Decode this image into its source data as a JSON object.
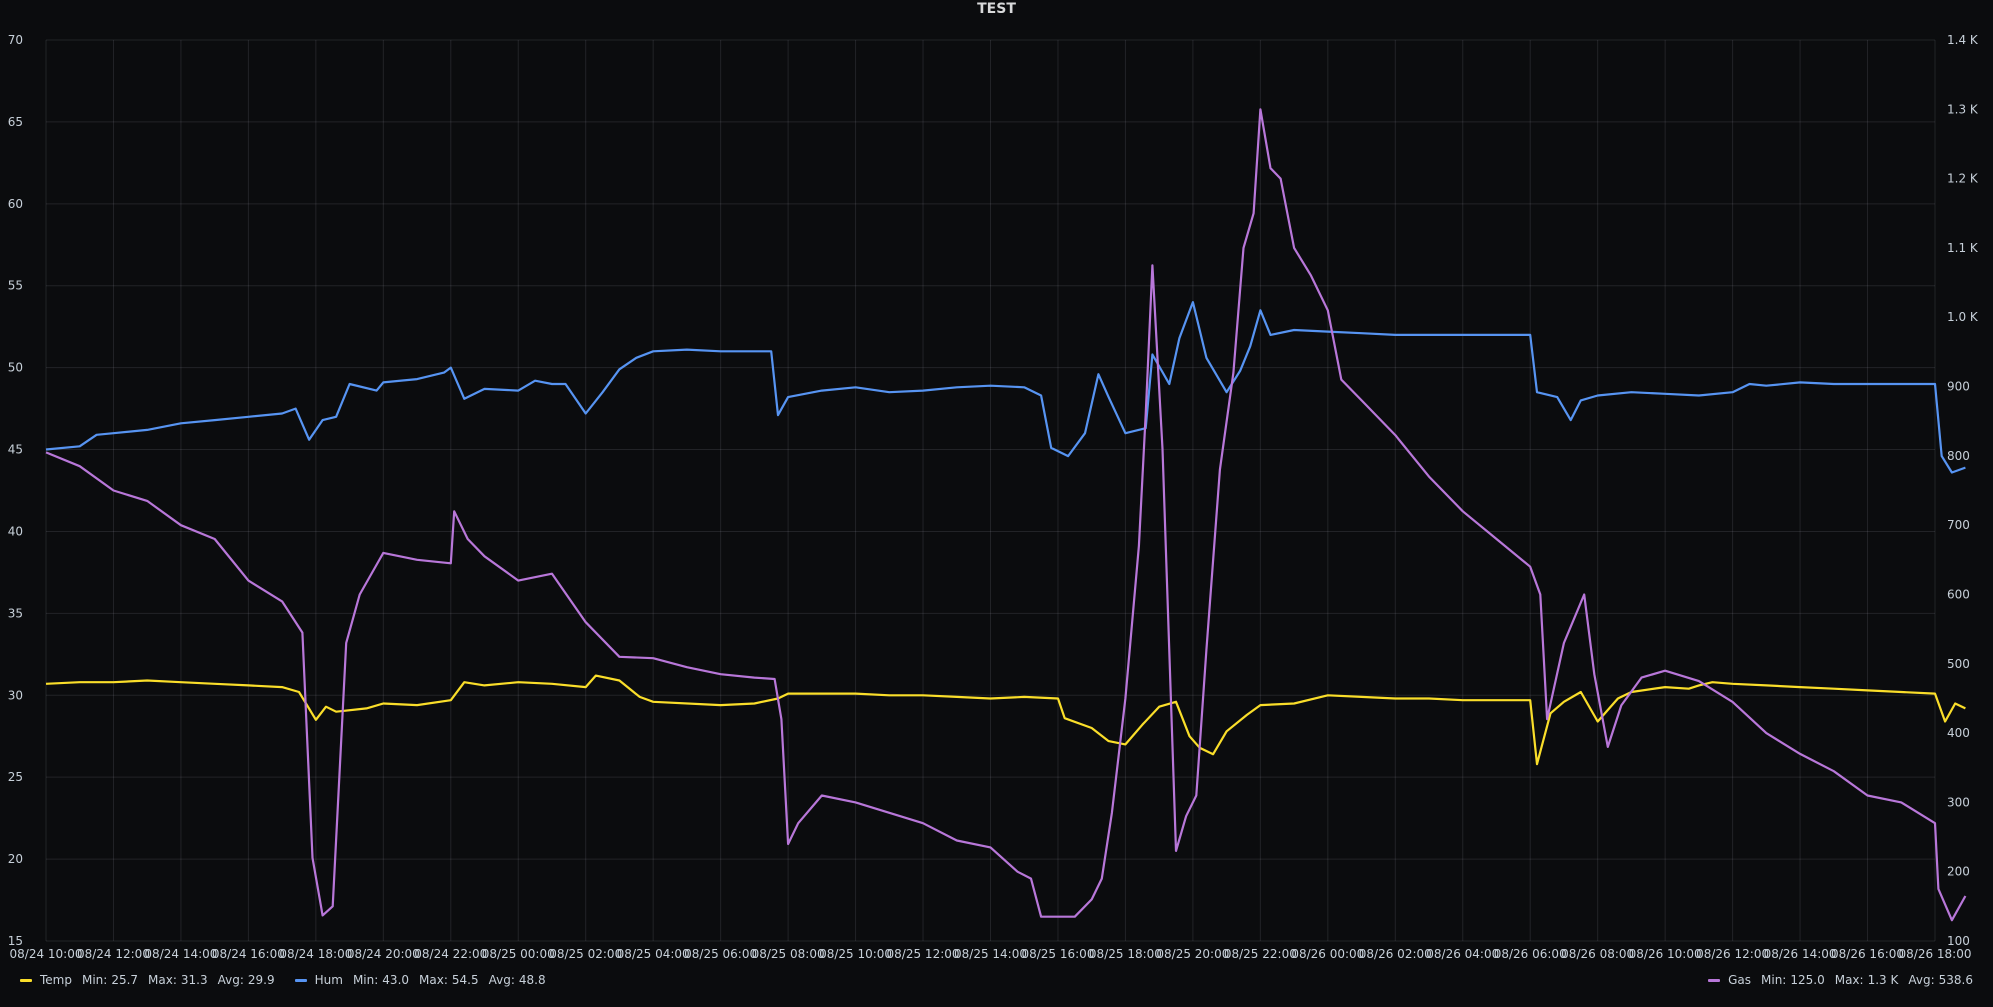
{
  "chart_data": {
    "type": "line",
    "title": "TEST",
    "left_axis": {
      "ylim": [
        15,
        70
      ],
      "ticks": [
        "70",
        "65",
        "60",
        "55",
        "50",
        "45",
        "40",
        "35",
        "30",
        "25",
        "20",
        "15"
      ]
    },
    "right_axis": {
      "ylim": [
        100,
        1400
      ],
      "ticks": [
        "1.4 K",
        "1.3 K",
        "1.2 K",
        "1.1 K",
        "1.0 K",
        "900",
        "800",
        "700",
        "600",
        "500",
        "400",
        "300",
        "200",
        "100"
      ]
    },
    "x_ticks": [
      "08/24 10:00",
      "08/24 12:00",
      "08/24 14:00",
      "08/24 16:00",
      "08/24 18:00",
      "08/24 20:00",
      "08/24 22:00",
      "08/25 00:00",
      "08/25 02:00",
      "08/25 04:00",
      "08/25 06:00",
      "08/25 08:00",
      "08/25 10:00",
      "08/25 12:00",
      "08/25 14:00",
      "08/25 16:00",
      "08/25 18:00",
      "08/25 20:00",
      "08/25 22:00",
      "08/26 00:00",
      "08/26 02:00",
      "08/26 04:00",
      "08/26 06:00",
      "08/26 08:00",
      "08/26 10:00",
      "08/26 12:00",
      "08/26 14:00",
      "08/26 16:00",
      "08/26 18:00"
    ],
    "x_unit": "hours since 08/24 10:00",
    "grid": true,
    "series": [
      {
        "name": "Temp",
        "axis": "left",
        "color": "#fade2a",
        "points": [
          [
            0,
            30.7
          ],
          [
            1,
            30.8
          ],
          [
            2,
            30.8
          ],
          [
            3,
            30.9
          ],
          [
            4,
            30.8
          ],
          [
            5,
            30.7
          ],
          [
            6,
            30.6
          ],
          [
            7,
            30.5
          ],
          [
            7.5,
            30.2
          ],
          [
            8,
            28.5
          ],
          [
            8.3,
            29.3
          ],
          [
            8.6,
            29.0
          ],
          [
            9.5,
            29.2
          ],
          [
            10,
            29.5
          ],
          [
            11,
            29.4
          ],
          [
            12,
            29.7
          ],
          [
            12.4,
            30.8
          ],
          [
            13,
            30.6
          ],
          [
            14,
            30.8
          ],
          [
            15,
            30.7
          ],
          [
            16,
            30.5
          ],
          [
            16.3,
            31.2
          ],
          [
            17,
            30.9
          ],
          [
            17.6,
            29.9
          ],
          [
            18,
            29.6
          ],
          [
            20,
            29.4
          ],
          [
            21,
            29.5
          ],
          [
            21.7,
            29.8
          ],
          [
            22,
            30.1
          ],
          [
            23,
            30.1
          ],
          [
            24,
            30.1
          ],
          [
            25,
            30.0
          ],
          [
            26,
            30.0
          ],
          [
            27,
            29.9
          ],
          [
            28,
            29.8
          ],
          [
            29,
            29.9
          ],
          [
            30,
            29.8
          ],
          [
            30.2,
            28.6
          ],
          [
            31,
            28.0
          ],
          [
            31.5,
            27.2
          ],
          [
            32,
            27.0
          ],
          [
            32.5,
            28.2
          ],
          [
            33,
            29.3
          ],
          [
            33.5,
            29.6
          ],
          [
            33.9,
            27.5
          ],
          [
            34.2,
            26.8
          ],
          [
            34.6,
            26.4
          ],
          [
            35,
            27.8
          ],
          [
            35.6,
            28.8
          ],
          [
            36,
            29.4
          ],
          [
            37,
            29.5
          ],
          [
            38,
            30.0
          ],
          [
            39,
            29.9
          ],
          [
            40,
            29.8
          ],
          [
            41,
            29.8
          ],
          [
            42,
            29.7
          ],
          [
            43,
            29.7
          ],
          [
            44,
            29.7
          ],
          [
            44.2,
            25.8
          ],
          [
            44.6,
            28.9
          ],
          [
            45,
            29.6
          ],
          [
            45.5,
            30.2
          ],
          [
            46,
            28.4
          ],
          [
            46.6,
            29.8
          ],
          [
            47,
            30.2
          ],
          [
            48,
            30.5
          ],
          [
            48.7,
            30.4
          ],
          [
            49,
            30.6
          ],
          [
            49.4,
            30.8
          ],
          [
            50,
            30.7
          ],
          [
            51,
            30.6
          ],
          [
            52,
            30.5
          ],
          [
            53,
            30.4
          ],
          [
            54,
            30.3
          ],
          [
            55,
            30.2
          ],
          [
            56,
            30.1
          ],
          [
            56.3,
            28.4
          ],
          [
            56.6,
            29.5
          ],
          [
            56.9,
            29.2
          ]
        ]
      },
      {
        "name": "Hum",
        "axis": "left",
        "color": "#5794f2",
        "points": [
          [
            0,
            45.0
          ],
          [
            1,
            45.2
          ],
          [
            1.5,
            45.9
          ],
          [
            2,
            46.0
          ],
          [
            3,
            46.2
          ],
          [
            4,
            46.6
          ],
          [
            5,
            46.8
          ],
          [
            6,
            47.0
          ],
          [
            7,
            47.2
          ],
          [
            7.4,
            47.5
          ],
          [
            7.8,
            45.6
          ],
          [
            8.2,
            46.8
          ],
          [
            8.6,
            47.0
          ],
          [
            9,
            49.0
          ],
          [
            9.8,
            48.6
          ],
          [
            10,
            49.1
          ],
          [
            11,
            49.3
          ],
          [
            11.8,
            49.7
          ],
          [
            12,
            50.0
          ],
          [
            12.4,
            48.1
          ],
          [
            13,
            48.7
          ],
          [
            14,
            48.6
          ],
          [
            14.5,
            49.2
          ],
          [
            15,
            49.0
          ],
          [
            15.4,
            49.0
          ],
          [
            16,
            47.2
          ],
          [
            16.5,
            48.5
          ],
          [
            17,
            49.9
          ],
          [
            17.5,
            50.6
          ],
          [
            18,
            51.0
          ],
          [
            19,
            51.1
          ],
          [
            20,
            51.0
          ],
          [
            21,
            51.0
          ],
          [
            21.5,
            51.0
          ],
          [
            21.7,
            47.1
          ],
          [
            22,
            48.2
          ],
          [
            23,
            48.6
          ],
          [
            24,
            48.8
          ],
          [
            25,
            48.5
          ],
          [
            26,
            48.6
          ],
          [
            27,
            48.8
          ],
          [
            28,
            48.9
          ],
          [
            29,
            48.8
          ],
          [
            29.5,
            48.3
          ],
          [
            29.8,
            45.1
          ],
          [
            30.3,
            44.6
          ],
          [
            30.8,
            46.0
          ],
          [
            31.2,
            49.6
          ],
          [
            31.5,
            48.2
          ],
          [
            32,
            46.0
          ],
          [
            32.6,
            46.3
          ],
          [
            32.8,
            50.8
          ],
          [
            33.3,
            49.0
          ],
          [
            33.6,
            51.8
          ],
          [
            34,
            54.0
          ],
          [
            34.4,
            50.6
          ],
          [
            35,
            48.5
          ],
          [
            35.4,
            49.8
          ],
          [
            35.7,
            51.3
          ],
          [
            36,
            53.5
          ],
          [
            36.3,
            52.0
          ],
          [
            37,
            52.3
          ],
          [
            38,
            52.2
          ],
          [
            39,
            52.1
          ],
          [
            40,
            52.0
          ],
          [
            41,
            52.0
          ],
          [
            42,
            52.0
          ],
          [
            43,
            52.0
          ],
          [
            44,
            52.0
          ],
          [
            44.2,
            48.5
          ],
          [
            44.8,
            48.2
          ],
          [
            45.2,
            46.8
          ],
          [
            45.5,
            48.0
          ],
          [
            46,
            48.3
          ],
          [
            47,
            48.5
          ],
          [
            48,
            48.4
          ],
          [
            49,
            48.3
          ],
          [
            50,
            48.5
          ],
          [
            50.5,
            49.0
          ],
          [
            51,
            48.9
          ],
          [
            52,
            49.1
          ],
          [
            53,
            49.0
          ],
          [
            54,
            49.0
          ],
          [
            55,
            49.0
          ],
          [
            56,
            49.0
          ],
          [
            56.2,
            44.6
          ],
          [
            56.5,
            43.6
          ],
          [
            56.9,
            43.9
          ]
        ]
      },
      {
        "name": "Gas",
        "axis": "right",
        "color": "#b877d9",
        "points": [
          [
            0,
            805
          ],
          [
            1,
            785
          ],
          [
            2,
            750
          ],
          [
            3,
            735
          ],
          [
            4,
            700
          ],
          [
            5,
            680
          ],
          [
            6,
            620
          ],
          [
            7,
            590
          ],
          [
            7.6,
            545
          ],
          [
            7.9,
            220
          ],
          [
            8.2,
            137
          ],
          [
            8.5,
            150
          ],
          [
            8.9,
            530
          ],
          [
            9.3,
            600
          ],
          [
            10,
            660
          ],
          [
            11,
            650
          ],
          [
            12,
            645
          ],
          [
            12.1,
            720
          ],
          [
            12.5,
            680
          ],
          [
            13,
            655
          ],
          [
            14,
            620
          ],
          [
            15,
            630
          ],
          [
            16,
            560
          ],
          [
            17,
            510
          ],
          [
            18,
            508
          ],
          [
            19,
            495
          ],
          [
            20,
            485
          ],
          [
            21,
            480
          ],
          [
            21.6,
            478
          ],
          [
            21.8,
            420
          ],
          [
            22,
            240
          ],
          [
            22.3,
            270
          ],
          [
            23,
            310
          ],
          [
            24,
            300
          ],
          [
            25,
            285
          ],
          [
            26,
            270
          ],
          [
            27,
            245
          ],
          [
            28,
            235
          ],
          [
            28.8,
            200
          ],
          [
            29.2,
            190
          ],
          [
            29.5,
            135
          ],
          [
            30.5,
            135
          ],
          [
            31,
            160
          ],
          [
            31.3,
            190
          ],
          [
            31.6,
            285
          ],
          [
            32,
            450
          ],
          [
            32.4,
            670
          ],
          [
            32.6,
            860
          ],
          [
            32.8,
            1075
          ],
          [
            33.1,
            810
          ],
          [
            33.5,
            230
          ],
          [
            33.8,
            280
          ],
          [
            34.1,
            310
          ],
          [
            34.4,
            520
          ],
          [
            34.8,
            780
          ],
          [
            35.2,
            920
          ],
          [
            35.5,
            1100
          ],
          [
            35.8,
            1150
          ],
          [
            36,
            1300
          ],
          [
            36.3,
            1215
          ],
          [
            36.6,
            1200
          ],
          [
            37,
            1100
          ],
          [
            37.5,
            1060
          ],
          [
            38,
            1010
          ],
          [
            38.4,
            910
          ],
          [
            39,
            880
          ],
          [
            40,
            830
          ],
          [
            41,
            770
          ],
          [
            42,
            720
          ],
          [
            43,
            680
          ],
          [
            44,
            640
          ],
          [
            44.3,
            600
          ],
          [
            44.5,
            420
          ],
          [
            45,
            530
          ],
          [
            45.6,
            600
          ],
          [
            45.9,
            485
          ],
          [
            46.3,
            380
          ],
          [
            46.7,
            440
          ],
          [
            47.3,
            480
          ],
          [
            48,
            490
          ],
          [
            49,
            475
          ],
          [
            50,
            445
          ],
          [
            51,
            400
          ],
          [
            52,
            370
          ],
          [
            53,
            345
          ],
          [
            54,
            310
          ],
          [
            55,
            300
          ],
          [
            56,
            270
          ],
          [
            56.1,
            175
          ],
          [
            56.5,
            130
          ],
          [
            56.9,
            165
          ]
        ]
      }
    ],
    "legend": {
      "temp": {
        "name": "Temp",
        "min_label": "Min:",
        "min": "25.7",
        "max_label": "Max:",
        "max": "31.3",
        "avg_label": "Avg:",
        "avg": "29.9"
      },
      "hum": {
        "name": "Hum",
        "min_label": "Min:",
        "min": "43.0",
        "max_label": "Max:",
        "max": "54.5",
        "avg_label": "Avg:",
        "avg": "48.8"
      },
      "gas": {
        "name": "Gas",
        "min_label": "Min:",
        "min": "125.0",
        "max_label": "Max:",
        "max": "1.3 K",
        "avg_label": "Avg:",
        "avg": "538.6"
      }
    }
  }
}
